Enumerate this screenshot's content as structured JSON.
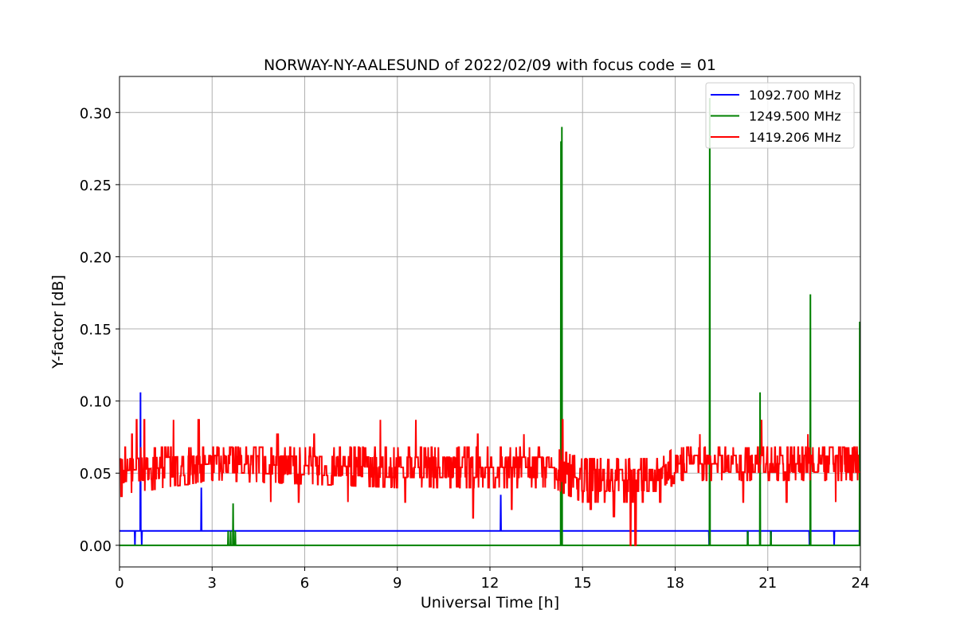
{
  "chart_data": {
    "type": "line",
    "title": "NORWAY-NY-AALESUND of 2022/02/09 with focus code = 01",
    "xlabel": "Universal Time [h]",
    "ylabel": "Y-factor [dB]",
    "xlim": [
      0,
      24
    ],
    "ylim": [
      -0.015,
      0.325
    ],
    "xticks": [
      0,
      3,
      6,
      9,
      12,
      15,
      18,
      21,
      24
    ],
    "xtick_labels": [
      "0",
      "3",
      "6",
      "9",
      "12",
      "15",
      "18",
      "21",
      "24"
    ],
    "yticks": [
      0.0,
      0.05,
      0.1,
      0.15,
      0.2,
      0.25,
      0.3
    ],
    "ytick_labels": [
      "0.00",
      "0.05",
      "0.10",
      "0.15",
      "0.20",
      "0.25",
      "0.30"
    ],
    "grid": true,
    "legend_position": "top-right",
    "series": [
      {
        "name": "1092.700 MHz",
        "color": "#0000ff",
        "baseline": 0.01,
        "events": [
          {
            "x": 0.5,
            "y": 0.0
          },
          {
            "x": 0.68,
            "y": 0.106
          },
          {
            "x": 0.72,
            "y": 0.0
          },
          {
            "x": 2.65,
            "y": 0.04
          },
          {
            "x": 12.35,
            "y": 0.035
          },
          {
            "x": 14.3,
            "y": 0.0
          },
          {
            "x": 19.1,
            "y": 0.0
          },
          {
            "x": 20.35,
            "y": 0.0
          },
          {
            "x": 20.75,
            "y": 0.0
          },
          {
            "x": 21.1,
            "y": 0.0
          },
          {
            "x": 22.35,
            "y": 0.0
          },
          {
            "x": 23.15,
            "y": 0.0
          },
          {
            "x": 24.0,
            "y": 0.0
          }
        ]
      },
      {
        "name": "1249.500 MHz",
        "color": "#008000",
        "baseline": 0.0,
        "events": [
          {
            "x": 3.52,
            "y": 0.01
          },
          {
            "x": 3.6,
            "y": 0.01
          },
          {
            "x": 3.68,
            "y": 0.029
          },
          {
            "x": 3.75,
            "y": 0.01
          },
          {
            "x": 14.3,
            "y": 0.28
          },
          {
            "x": 14.33,
            "y": 0.29
          },
          {
            "x": 19.12,
            "y": 0.31
          },
          {
            "x": 20.35,
            "y": 0.01
          },
          {
            "x": 20.75,
            "y": 0.106
          },
          {
            "x": 21.1,
            "y": 0.01
          },
          {
            "x": 22.38,
            "y": 0.174
          },
          {
            "x": 23.98,
            "y": 0.155
          }
        ]
      },
      {
        "name": "1419.206 MHz",
        "color": "#ff0000",
        "noise_band": [
          {
            "x": 0.0,
            "low": 0.035,
            "high": 0.068
          },
          {
            "x": 3.0,
            "low": 0.045,
            "high": 0.068
          },
          {
            "x": 9.0,
            "low": 0.04,
            "high": 0.068
          },
          {
            "x": 12.0,
            "low": 0.04,
            "high": 0.068
          },
          {
            "x": 14.0,
            "low": 0.04,
            "high": 0.068
          },
          {
            "x": 15.0,
            "low": 0.03,
            "high": 0.06
          },
          {
            "x": 17.5,
            "low": 0.03,
            "high": 0.06
          },
          {
            "x": 18.0,
            "low": 0.045,
            "high": 0.068
          },
          {
            "x": 24.0,
            "low": 0.045,
            "high": 0.068
          }
        ],
        "peaks": [
          {
            "x": 0.4,
            "y": 0.077
          },
          {
            "x": 0.55,
            "y": 0.087
          },
          {
            "x": 0.8,
            "y": 0.087
          },
          {
            "x": 1.75,
            "y": 0.087
          },
          {
            "x": 2.55,
            "y": 0.087
          },
          {
            "x": 8.45,
            "y": 0.087
          },
          {
            "x": 9.6,
            "y": 0.087
          },
          {
            "x": 14.35,
            "y": 0.087
          },
          {
            "x": 20.8,
            "y": 0.087
          },
          {
            "x": 5.1,
            "y": 0.077
          },
          {
            "x": 6.3,
            "y": 0.077
          },
          {
            "x": 13.1,
            "y": 0.077
          },
          {
            "x": 22.3,
            "y": 0.077
          },
          {
            "x": 18.8,
            "y": 0.077
          },
          {
            "x": 11.6,
            "y": 0.077
          }
        ],
        "dips": [
          {
            "x": 0.05,
            "y": 0.034
          },
          {
            "x": 11.45,
            "y": 0.019
          },
          {
            "x": 16.55,
            "y": 0.0
          },
          {
            "x": 16.7,
            "y": 0.0
          },
          {
            "x": 23.2,
            "y": 0.03
          },
          {
            "x": 5.8,
            "y": 0.03
          },
          {
            "x": 7.4,
            "y": 0.03
          },
          {
            "x": 9.25,
            "y": 0.03
          },
          {
            "x": 12.7,
            "y": 0.025
          },
          {
            "x": 15.25,
            "y": 0.025
          },
          {
            "x": 16.0,
            "y": 0.02
          },
          {
            "x": 17.5,
            "y": 0.03
          },
          {
            "x": 20.2,
            "y": 0.03
          },
          {
            "x": 21.6,
            "y": 0.03
          },
          {
            "x": 4.9,
            "y": 0.03
          }
        ]
      }
    ]
  }
}
